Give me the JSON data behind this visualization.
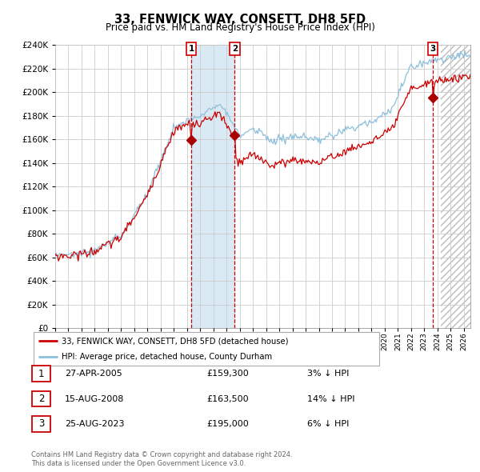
{
  "title": "33, FENWICK WAY, CONSETT, DH8 5FD",
  "subtitle": "Price paid vs. HM Land Registry's House Price Index (HPI)",
  "legend_line1": "33, FENWICK WAY, CONSETT, DH8 5FD (detached house)",
  "legend_line2": "HPI: Average price, detached house, County Durham",
  "footer1": "Contains HM Land Registry data © Crown copyright and database right 2024.",
  "footer2": "This data is licensed under the Open Government Licence v3.0.",
  "sale_labels": [
    "1",
    "2",
    "3"
  ],
  "sale_dates_text": [
    "27-APR-2005",
    "15-AUG-2008",
    "25-AUG-2023"
  ],
  "sale_prices_text": [
    "£159,300",
    "£163,500",
    "£195,000"
  ],
  "sale_hpi_text": [
    "3% ↓ HPI",
    "14% ↓ HPI",
    "6% ↓ HPI"
  ],
  "sale_years": [
    2005.32,
    2008.62,
    2023.65
  ],
  "sale_prices": [
    159300,
    163500,
    195000
  ],
  "hpi_color": "#8dc0dc",
  "price_color": "#cc0000",
  "sale_dot_color": "#aa0000",
  "dashed_line_color": "#cc0000",
  "shade_color": "#daeaf5",
  "background_color": "#ffffff",
  "grid_color": "#cccccc",
  "ylim": [
    0,
    240000
  ],
  "ytick_step": 20000,
  "xmin": 1995,
  "xmax": 2026.5,
  "hatch_start": 2024.25
}
